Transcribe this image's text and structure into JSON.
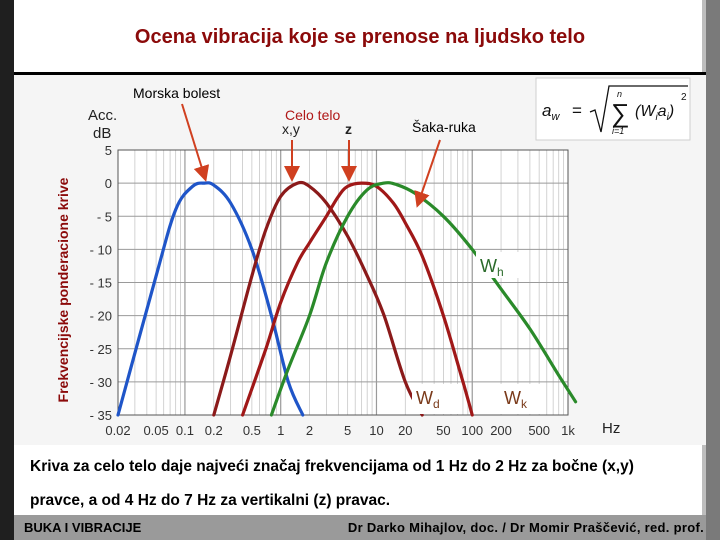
{
  "title": "Ocena vibracija koje se prenose na ljudsko telo",
  "caption": "Kriva za celo telo daje najveći značaj frekvencijama od 1 Hz do 2 Hz za bočne (x,y) pravce, a od 4 Hz do 7 Hz za vertikalni (z) pravac.",
  "footer": {
    "left": "BUKA I VIBRACIJE",
    "right": "Dr Darko Mihajlov, doc. / Dr Momir Praščević, red. prof."
  },
  "chart_data": {
    "type": "line",
    "ylabel_rotated": "Frekvencijske ponderacione krive",
    "ylabel_top": "Acc.",
    "yunit": "dB",
    "xunit": "Hz",
    "x_scale": "log",
    "x_ticks": [
      {
        "value": 0.02,
        "label": "0.02"
      },
      {
        "value": 0.05,
        "label": "0.05"
      },
      {
        "value": 0.1,
        "label": "0.1"
      },
      {
        "value": 0.2,
        "label": "0.2"
      },
      {
        "value": 0.5,
        "label": "0.5"
      },
      {
        "value": 1,
        "label": "1"
      },
      {
        "value": 2,
        "label": "2"
      },
      {
        "value": 5,
        "label": "5"
      },
      {
        "value": 10,
        "label": "10"
      },
      {
        "value": 20,
        "label": "20"
      },
      {
        "value": 50,
        "label": "50"
      },
      {
        "value": 100,
        "label": "100"
      },
      {
        "value": 200,
        "label": "200"
      },
      {
        "value": 500,
        "label": "500"
      },
      {
        "value": 1000,
        "label": "1k"
      }
    ],
    "y_ticks": [
      {
        "value": 5,
        "label": "5"
      },
      {
        "value": 0,
        "label": "0"
      },
      {
        "value": -5,
        "label": "- 5"
      },
      {
        "value": -10,
        "label": "- 10"
      },
      {
        "value": -15,
        "label": "- 15"
      },
      {
        "value": -20,
        "label": "- 20"
      },
      {
        "value": -25,
        "label": "- 25"
      },
      {
        "value": -30,
        "label": "- 30"
      },
      {
        "value": -35,
        "label": "- 35"
      }
    ],
    "xlim": [
      0.02,
      1000
    ],
    "ylim": [
      -35,
      5
    ],
    "grid": true,
    "series": [
      {
        "key": "morska",
        "color": "#1f55c8",
        "x": [
          0.02,
          0.05,
          0.08,
          0.12,
          0.16,
          0.2,
          0.3,
          0.5,
          0.8,
          1.2,
          1.7
        ],
        "y": [
          -35,
          -14,
          -4,
          -0.5,
          0,
          -0.3,
          -3,
          -10,
          -20,
          -30,
          -35
        ]
      },
      {
        "key": "xy",
        "color": "#8b1a1a",
        "x": [
          0.2,
          0.3,
          0.5,
          0.7,
          1,
          1.5,
          2,
          3,
          5,
          8,
          12,
          20,
          30
        ],
        "y": [
          -35,
          -26,
          -14,
          -7,
          -2,
          0,
          -0.5,
          -3,
          -8,
          -14,
          -20,
          -30,
          -35
        ]
      },
      {
        "key": "z",
        "color": "#a01818",
        "x": [
          0.4,
          0.7,
          1,
          1.5,
          2,
          3,
          4,
          5,
          7,
          10,
          15,
          20,
          30,
          50,
          80,
          100
        ],
        "y": [
          -35,
          -25,
          -18,
          -12,
          -9,
          -5,
          -2,
          -0.5,
          0,
          -0.5,
          -3,
          -6,
          -11,
          -20,
          -30,
          -35
        ]
      },
      {
        "key": "hand",
        "color": "#2a8a2a",
        "x": [
          0.8,
          1.2,
          2,
          3,
          5,
          8,
          12,
          16,
          25,
          50,
          100,
          200,
          400,
          800,
          1200
        ],
        "y": [
          -35,
          -28,
          -20,
          -12,
          -5,
          -1,
          0,
          -0.2,
          -1.5,
          -5,
          -10,
          -16,
          -22,
          -29,
          -33
        ]
      }
    ],
    "annotations": [
      {
        "key": "morska",
        "text": "Morska bolest"
      },
      {
        "key": "celo",
        "text": "Celo telo"
      },
      {
        "key": "xy",
        "text": "x,y"
      },
      {
        "key": "z",
        "text": "z"
      },
      {
        "key": "saka",
        "text": "Šaka-ruka"
      }
    ],
    "curve_labels": [
      {
        "key": "wh",
        "main": "W",
        "sub": "h"
      },
      {
        "key": "wd",
        "main": "W",
        "sub": "d"
      },
      {
        "key": "wk",
        "main": "W",
        "sub": "k"
      }
    ],
    "formula": {
      "lhs": "a",
      "lhs_sub": "w",
      "eq": "=",
      "sum_top": "n",
      "sum_bottom": "i=1",
      "term": "(W",
      "term_sub": "i",
      "term2": "a",
      "term2_sub": "i",
      "close": ")",
      "power": "2"
    }
  }
}
